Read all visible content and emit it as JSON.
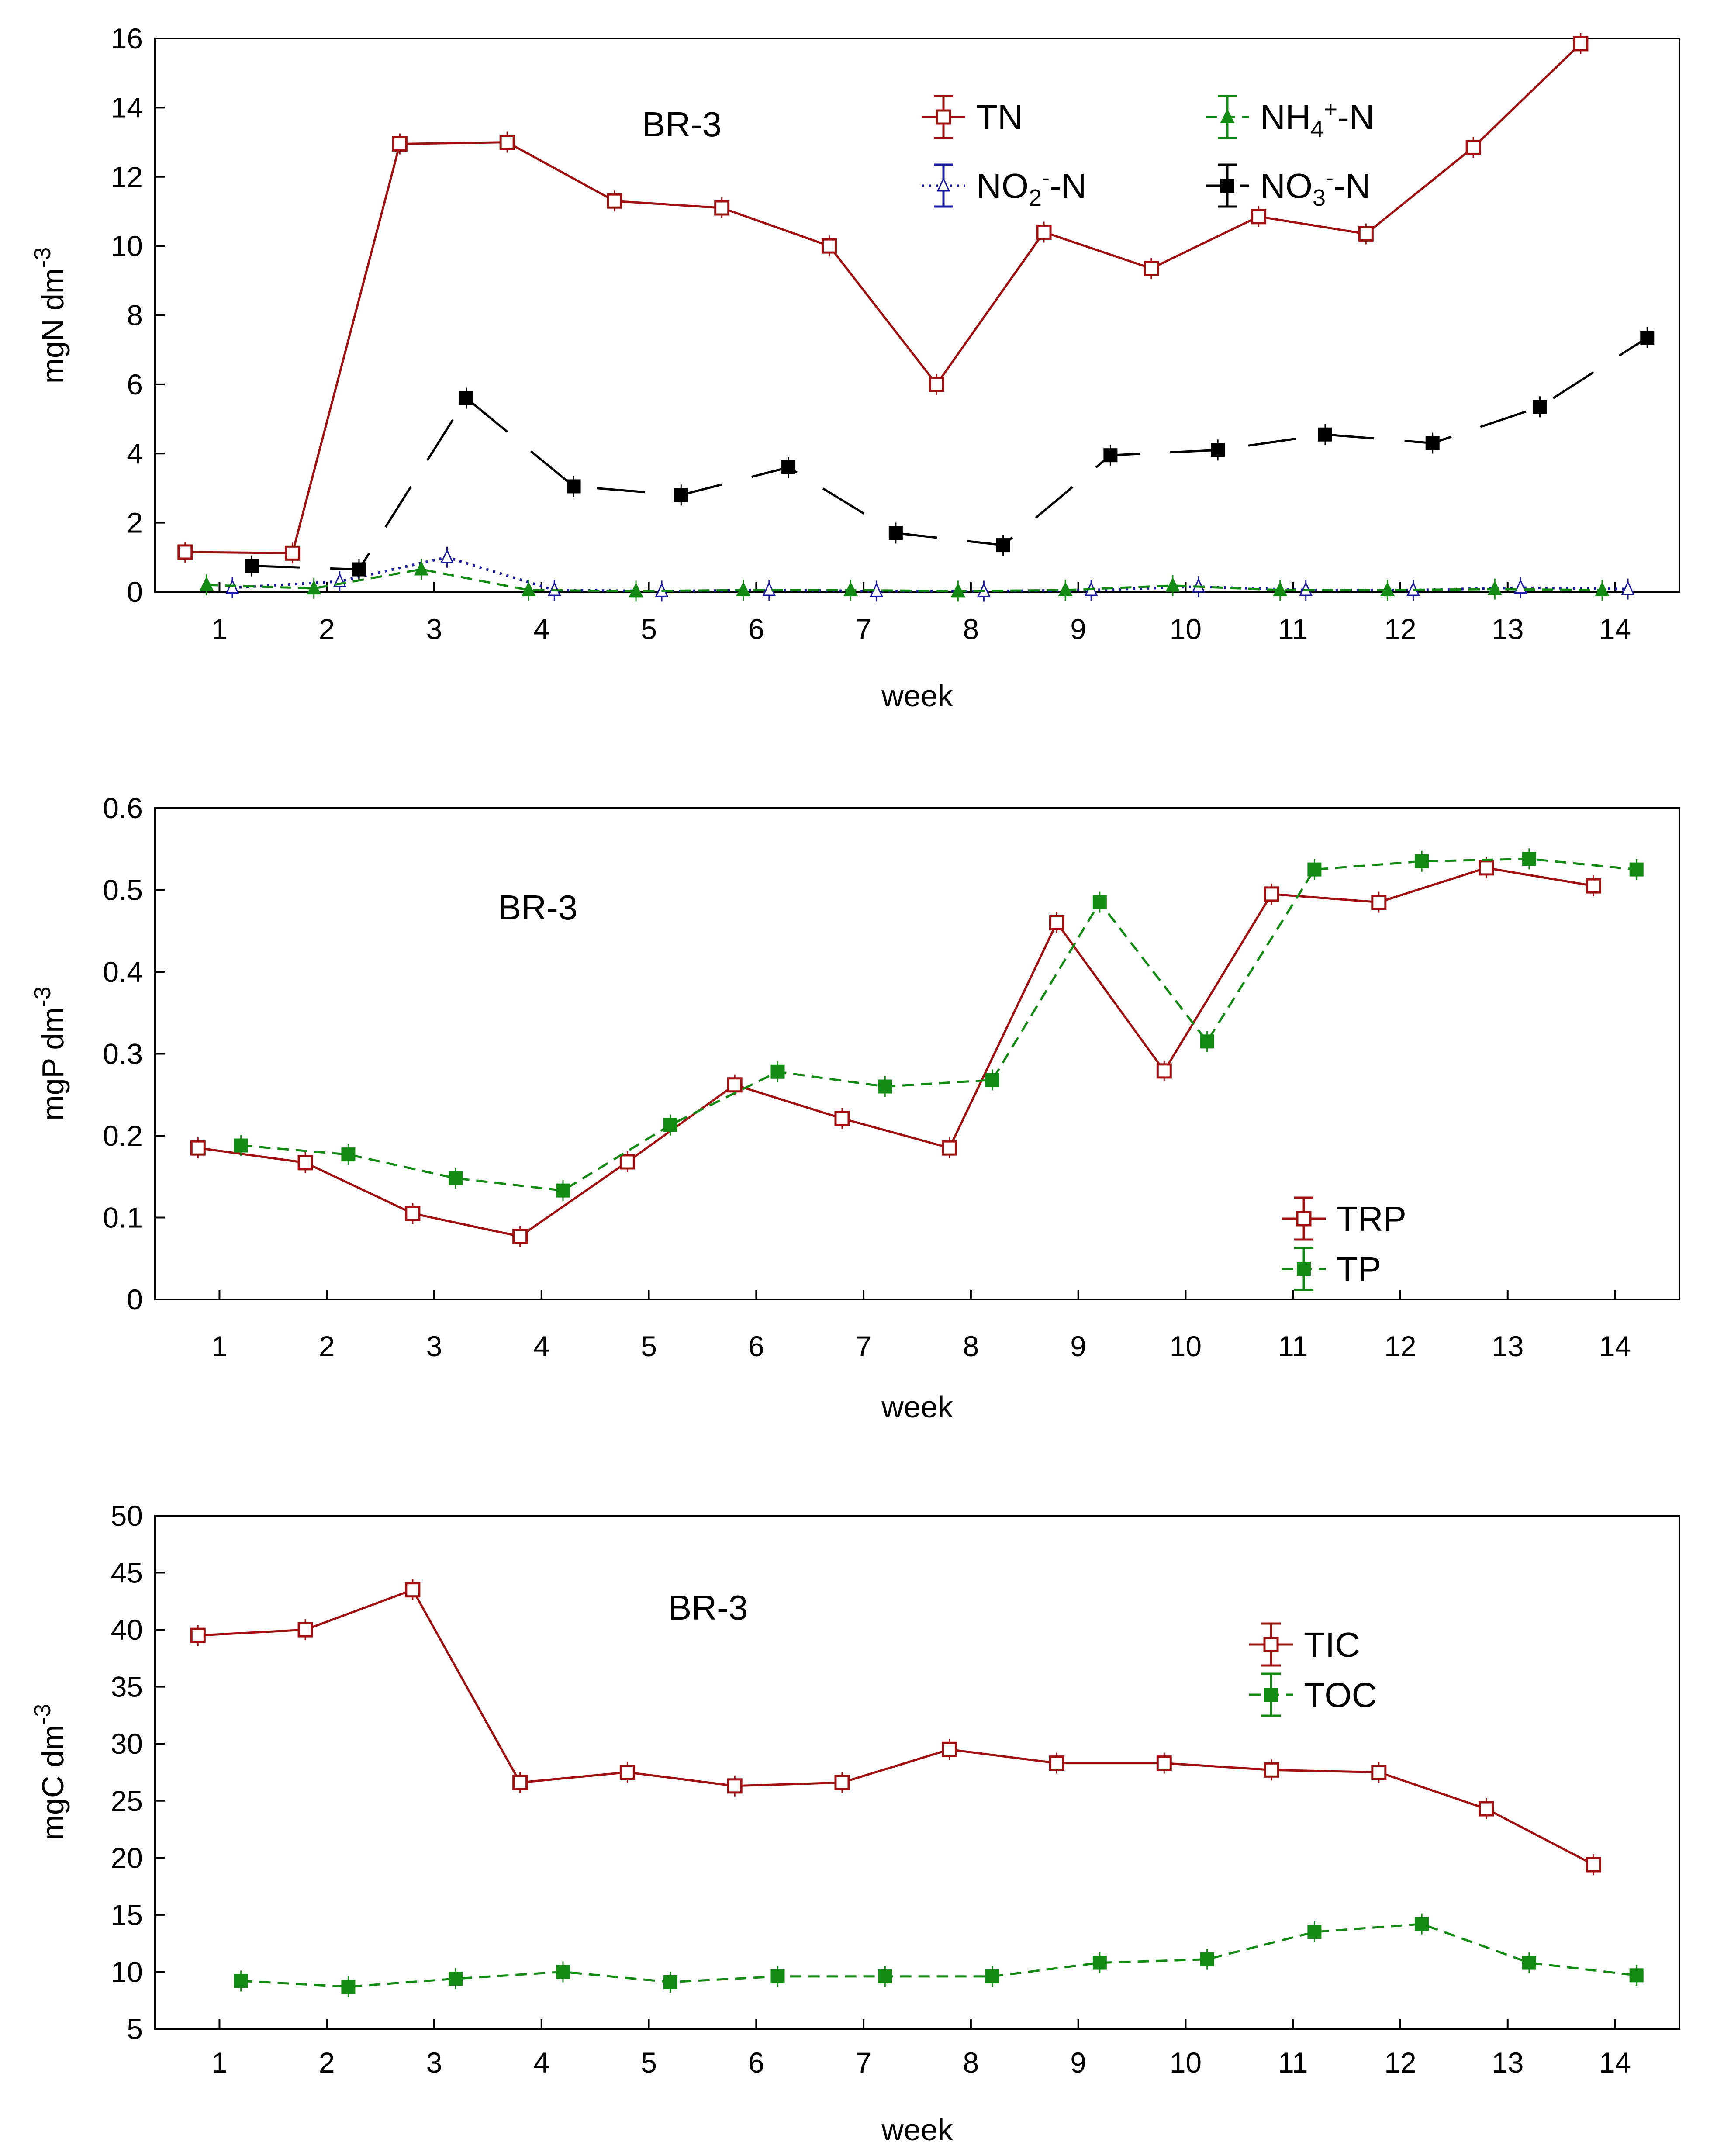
{
  "colors": {
    "red": "#a01010",
    "green": "#138a13",
    "blue": "#1a1aa0",
    "black": "#000000"
  },
  "chart_data": [
    {
      "type": "line",
      "annotation": "BR-3",
      "xlabel": "week",
      "ylabel": {
        "main": "mgN dm",
        "sup": "-3"
      },
      "x": [
        1,
        2,
        3,
        4,
        5,
        6,
        7,
        8,
        9,
        10,
        11,
        12,
        13,
        14
      ],
      "xlim": [
        0.4,
        14.6
      ],
      "ylim": [
        0,
        16
      ],
      "yticks": [
        "0",
        "2",
        "4",
        "6",
        "8",
        "10",
        "12",
        "14",
        "16"
      ],
      "legend_position": "top-center",
      "series": [
        {
          "key": "tn",
          "legend": {
            "main": "TN"
          },
          "color": "red",
          "marker": "open-square",
          "dash": "solid",
          "offset": -0.32,
          "values": [
            1.15,
            1.12,
            12.95,
            13.0,
            11.3,
            11.1,
            10.0,
            6.0,
            10.4,
            9.35,
            10.85,
            10.35,
            12.85,
            15.85
          ]
        },
        {
          "key": "no2",
          "legend": {
            "main": "NO",
            "sub": "2",
            "sup": "-",
            "tail": "-N"
          },
          "color": "blue",
          "marker": "open-triangle",
          "dash": "dotted",
          "offset": 0.12,
          "values": [
            0.12,
            0.3,
            1.0,
            0.05,
            0.02,
            0.05,
            0.02,
            0.02,
            0.05,
            0.15,
            0.05,
            0.05,
            0.12,
            0.08
          ]
        },
        {
          "key": "nh4",
          "legend": {
            "main": "NH",
            "sub": "4",
            "sup": "+",
            "tail": "-N"
          },
          "color": "green",
          "marker": "triangle",
          "dash": "dashed",
          "offset": -0.12,
          "values": [
            0.2,
            0.1,
            0.65,
            0.05,
            0.02,
            0.05,
            0.05,
            0.02,
            0.05,
            0.18,
            0.05,
            0.05,
            0.08,
            0.05
          ]
        },
        {
          "key": "no3",
          "legend": {
            "main": "NO",
            "sub": "3",
            "sup": "-",
            "tail": "-N"
          },
          "color": "black",
          "marker": "square",
          "dash": "longdash",
          "offset": 0.3,
          "values": [
            0.75,
            0.65,
            5.6,
            3.05,
            2.8,
            3.6,
            1.7,
            1.35,
            3.95,
            4.1,
            4.55,
            4.3,
            5.35,
            7.35
          ]
        }
      ]
    },
    {
      "type": "line",
      "annotation": "BR-3",
      "xlabel": "week",
      "ylabel": {
        "main": "mgP dm",
        "sup": "-3"
      },
      "x": [
        1,
        2,
        3,
        4,
        5,
        6,
        7,
        8,
        9,
        10,
        11,
        12,
        13,
        14
      ],
      "xlim": [
        0.4,
        14.6
      ],
      "ylim": [
        0,
        0.6
      ],
      "yticks": [
        "0",
        "0.1",
        "0.2",
        "0.3",
        "0.4",
        "0.5",
        "0.6"
      ],
      "legend_position": "bottom-right",
      "series": [
        {
          "key": "trp",
          "legend": {
            "main": "TRP"
          },
          "color": "red",
          "marker": "open-square",
          "dash": "solid",
          "offset": -0.2,
          "values": [
            0.185,
            0.167,
            0.105,
            0.077,
            0.168,
            0.262,
            0.221,
            0.185,
            0.46,
            0.279,
            0.495,
            0.485,
            0.527,
            0.505
          ]
        },
        {
          "key": "tp",
          "legend": {
            "main": "TP"
          },
          "color": "green",
          "marker": "square",
          "dash": "dashed",
          "offset": 0.2,
          "values": [
            0.188,
            0.177,
            0.148,
            0.133,
            0.213,
            0.278,
            0.26,
            0.268,
            0.485,
            0.315,
            0.525,
            0.535,
            0.538,
            0.525
          ]
        }
      ]
    },
    {
      "type": "line",
      "annotation": "BR-3",
      "xlabel": "week",
      "ylabel": {
        "main": "mgC dm",
        "sup": "-3"
      },
      "x": [
        1,
        2,
        3,
        4,
        5,
        6,
        7,
        8,
        9,
        10,
        11,
        12,
        13,
        14
      ],
      "xlim": [
        0.4,
        14.6
      ],
      "ylim": [
        5,
        50
      ],
      "yticks": [
        "5",
        "10",
        "15",
        "20",
        "25",
        "30",
        "35",
        "40",
        "45",
        "50"
      ],
      "legend_position": "top-right",
      "series": [
        {
          "key": "tic",
          "legend": {
            "main": "TIC"
          },
          "color": "red",
          "marker": "open-square",
          "dash": "solid",
          "offset": -0.2,
          "values": [
            39.5,
            40.0,
            43.5,
            26.6,
            27.5,
            26.3,
            26.6,
            29.5,
            28.3,
            28.3,
            27.7,
            27.5,
            24.3,
            19.4
          ]
        },
        {
          "key": "toc",
          "legend": {
            "main": "TOC"
          },
          "color": "green",
          "marker": "square",
          "dash": "dashed",
          "offset": 0.2,
          "values": [
            9.2,
            8.7,
            9.4,
            10.0,
            9.1,
            9.6,
            9.6,
            9.6,
            10.8,
            11.1,
            13.5,
            14.2,
            10.8,
            9.7
          ]
        }
      ]
    }
  ]
}
